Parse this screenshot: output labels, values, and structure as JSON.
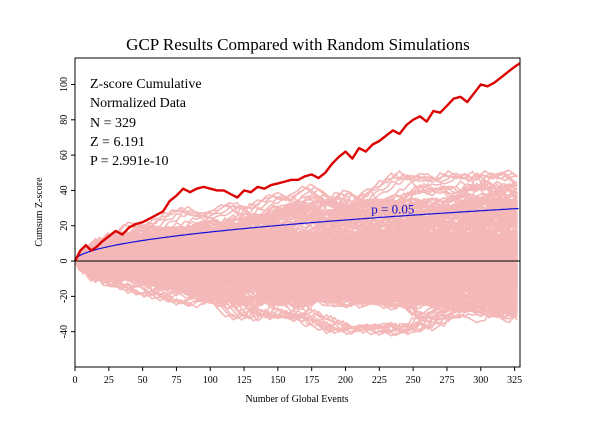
{
  "chart_data": {
    "type": "line",
    "title": "GCP Results Compared with Random Simulations",
    "xlabel": "Number of Global Events",
    "ylabel": "Cumsum Z-score",
    "xlim": [
      0,
      329
    ],
    "ylim": [
      -60,
      115
    ],
    "x_ticks": [
      0,
      25,
      50,
      75,
      100,
      125,
      150,
      175,
      200,
      225,
      250,
      275,
      300,
      325
    ],
    "y_ticks": [
      -40,
      -20,
      0,
      20,
      40,
      60,
      80,
      100
    ],
    "grid": false,
    "stats": {
      "heading": "Z-score Cumulative",
      "subheading": "Normalized Data",
      "n": "N = 329",
      "z": "Z = 6.191",
      "p": "P = 2.991e-10"
    },
    "reference_curve": {
      "label": "p = 0.05",
      "formula": "1.645*sqrt(n)",
      "color": "#1010dd"
    },
    "zero_line": 0,
    "series": [
      {
        "color": "#dd0000",
        "x": [
          0,
          4,
          8,
          12,
          16,
          20,
          25,
          30,
          35,
          40,
          45,
          50,
          55,
          60,
          65,
          70,
          75,
          80,
          85,
          90,
          95,
          100,
          105,
          110,
          115,
          120,
          125,
          130,
          135,
          140,
          145,
          150,
          155,
          160,
          165,
          170,
          175,
          180,
          185,
          190,
          195,
          200,
          205,
          210,
          215,
          220,
          225,
          230,
          235,
          240,
          245,
          250,
          255,
          260,
          265,
          270,
          275,
          280,
          285,
          290,
          295,
          300,
          305,
          310,
          315,
          320,
          325,
          329
        ],
        "values": [
          0,
          6,
          9,
          6,
          8,
          11,
          14,
          17,
          15,
          19,
          21,
          22,
          24,
          26,
          28,
          34,
          37,
          41,
          39,
          41,
          42,
          41,
          40,
          40,
          38,
          36,
          40,
          39,
          42,
          41,
          43,
          44,
          45,
          46,
          46,
          48,
          49,
          47,
          50,
          55,
          59,
          62,
          58,
          64,
          62,
          66,
          68,
          71,
          74,
          72,
          77,
          80,
          82,
          79,
          85,
          84,
          88,
          92,
          93,
          90,
          95,
          100,
          99,
          101,
          104,
          107,
          110,
          112
        ]
      }
    ],
    "simulations": {
      "count": 500,
      "color": "#f4b8b8",
      "range_at_end": [
        -40,
        45
      ]
    }
  }
}
